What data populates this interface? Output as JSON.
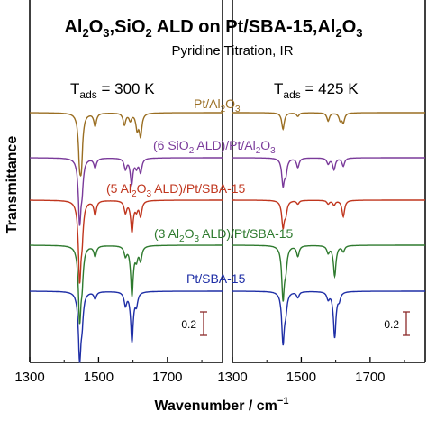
{
  "chart_data": {
    "type": "line",
    "title": "Al2O3,SiO2 ALD on Pt/SBA-15,Al2O3",
    "title_parts": {
      "p1": "Al",
      "s1": "2",
      "p2": "O",
      "s2": "3",
      "p3": ",SiO",
      "s3": "2",
      "p4": " ALD on Pt/SBA-15,Al",
      "s4": "2",
      "p5": "O",
      "s5": "3"
    },
    "subtitle": "Pyridine Titration, IR",
    "panels": [
      {
        "id": "left",
        "T_label": {
          "main": "T",
          "sub": "ads",
          "value": " = 300 K"
        }
      },
      {
        "id": "right",
        "T_label": {
          "main": "T",
          "sub": "ads",
          "value": " = 425 K"
        }
      }
    ],
    "xlabel": {
      "text": "Wavenumber / cm",
      "sup": "−1"
    },
    "ylabel": "Transmittance",
    "xlim": [
      1300,
      1860
    ],
    "xticks": [
      1300,
      1500,
      1700
    ],
    "xtick_labels": [
      "1300",
      "1500",
      "1700"
    ],
    "grid": false,
    "legend": "inline labels",
    "scale_bar": {
      "value": 0.2,
      "label": "0.2"
    },
    "series": [
      {
        "name": "Pt/Al2O3",
        "label_parts": [
          [
            "Pt/Al",
            ""
          ],
          [
            "2",
            "sub"
          ],
          [
            "O",
            ""
          ],
          [
            "3",
            "sub"
          ]
        ],
        "color": "#9a6e22",
        "peaks_300K": [
          [
            1445,
            0.34
          ],
          [
            1450,
            0.36
          ],
          [
            1490,
            0.11
          ],
          [
            1575,
            0.1
          ],
          [
            1592,
            0.06
          ],
          [
            1612,
            0.13
          ],
          [
            1622,
            0.19
          ]
        ],
        "peaks_425K": [
          [
            1447,
            0.14
          ],
          [
            1490,
            0.03
          ],
          [
            1578,
            0.07
          ],
          [
            1613,
            0.06
          ],
          [
            1622,
            0.08
          ]
        ]
      },
      {
        "name": "(6 SiO2 ALD)/Pt/Al2O3",
        "label_parts": [
          [
            "(6 SiO",
            ""
          ],
          [
            "2",
            "sub"
          ],
          [
            " ALD)/Pt/Al",
            ""
          ],
          [
            "2",
            "sub"
          ],
          [
            "O",
            ""
          ],
          [
            "3",
            "sub"
          ]
        ],
        "color": "#7a3a9a",
        "peaks_300K": [
          [
            1445,
            0.52
          ],
          [
            1452,
            0.2
          ],
          [
            1490,
            0.08
          ],
          [
            1578,
            0.09
          ],
          [
            1596,
            0.22
          ],
          [
            1610,
            0.07
          ],
          [
            1622,
            0.12
          ]
        ],
        "peaks_425K": [
          [
            1447,
            0.22
          ],
          [
            1455,
            0.12
          ],
          [
            1490,
            0.08
          ],
          [
            1578,
            0.05
          ],
          [
            1595,
            0.1
          ],
          [
            1622,
            0.07
          ]
        ]
      },
      {
        "name": "(5 Al2O3 ALD)/Pt/SBA-15",
        "label_parts": [
          [
            "(5 Al",
            ""
          ],
          [
            "2",
            "sub"
          ],
          [
            "O",
            ""
          ],
          [
            "3",
            "sub"
          ],
          [
            " ALD)/Pt/SBA-15",
            ""
          ]
        ],
        "color": "#c0361e",
        "peaks_300K": [
          [
            1445,
            0.64
          ],
          [
            1452,
            0.24
          ],
          [
            1490,
            0.12
          ],
          [
            1578,
            0.1
          ],
          [
            1597,
            0.26
          ],
          [
            1610,
            0.07
          ],
          [
            1622,
            0.13
          ]
        ],
        "peaks_425K": [
          [
            1447,
            0.22
          ],
          [
            1455,
            0.1
          ],
          [
            1490,
            0.03
          ],
          [
            1578,
            0.03
          ],
          [
            1595,
            0.04
          ],
          [
            1622,
            0.14
          ]
        ]
      },
      {
        "name": "(3 Al2O3 ALD)/Pt/SBA-15",
        "label_parts": [
          [
            "(3 Al",
            ""
          ],
          [
            "2",
            "sub"
          ],
          [
            "O",
            ""
          ],
          [
            "3",
            "sub"
          ],
          [
            " ALD)/Pt/SBA-15",
            ""
          ]
        ],
        "color": "#2e7a2e",
        "peaks_300K": [
          [
            1445,
            0.6
          ],
          [
            1452,
            0.24
          ],
          [
            1490,
            0.09
          ],
          [
            1578,
            0.08
          ],
          [
            1597,
            0.42
          ],
          [
            1610,
            0.1
          ],
          [
            1622,
            0.12
          ]
        ],
        "peaks_425K": [
          [
            1447,
            0.44
          ],
          [
            1455,
            0.16
          ],
          [
            1490,
            0.09
          ],
          [
            1578,
            0.06
          ],
          [
            1597,
            0.26
          ],
          [
            1622,
            0.05
          ]
        ]
      },
      {
        "name": "Pt/SBA-15",
        "label_parts": [
          [
            "Pt/SBA-15",
            ""
          ]
        ],
        "color": "#1e2ea6",
        "peaks_300K": [
          [
            1445,
            0.55
          ],
          [
            1452,
            0.2
          ],
          [
            1490,
            0.06
          ],
          [
            1578,
            0.11
          ],
          [
            1597,
            0.42
          ],
          [
            1610,
            0.1
          ]
        ],
        "peaks_425K": [
          [
            1447,
            0.43
          ],
          [
            1455,
            0.13
          ],
          [
            1490,
            0.05
          ],
          [
            1578,
            0.06
          ],
          [
            1597,
            0.39
          ],
          [
            1610,
            0.06
          ]
        ]
      }
    ]
  }
}
